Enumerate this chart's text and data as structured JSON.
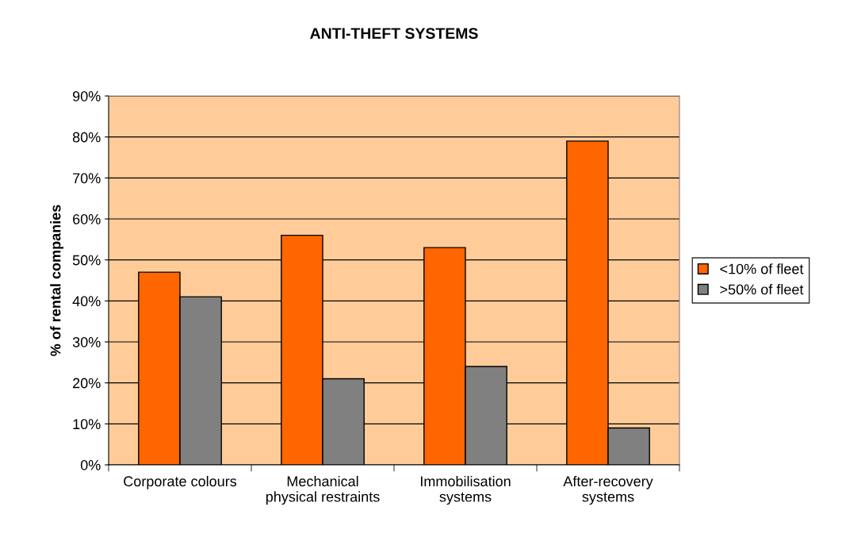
{
  "chart_data": {
    "type": "bar",
    "title": "ANTI-THEFT SYSTEMS",
    "ylabel": "% of rental companies",
    "categories": [
      "Corporate colours",
      "Mechanical\nphysical restraints",
      "Immobilisation\nsystems",
      "After-recovery\nsystems"
    ],
    "series": [
      {
        "name": "<10% of fleet",
        "color": "#ff6600",
        "values": [
          47,
          56,
          53,
          79
        ]
      },
      {
        "name": ">50% of fleet",
        "color": "#808080",
        "values": [
          41,
          21,
          24,
          9
        ]
      }
    ],
    "ylim": [
      0,
      90
    ],
    "yticks": [
      {
        "value": 0,
        "label": "0%"
      },
      {
        "value": 10,
        "label": "10%"
      },
      {
        "value": 20,
        "label": "20%"
      },
      {
        "value": 30,
        "label": "30%"
      },
      {
        "value": 40,
        "label": "40%"
      },
      {
        "value": 50,
        "label": "50%"
      },
      {
        "value": 60,
        "label": "60%"
      },
      {
        "value": 70,
        "label": "70%"
      },
      {
        "value": 80,
        "label": "80%"
      },
      {
        "value": 90,
        "label": "90%"
      }
    ],
    "grid": "y",
    "legend": "right"
  }
}
